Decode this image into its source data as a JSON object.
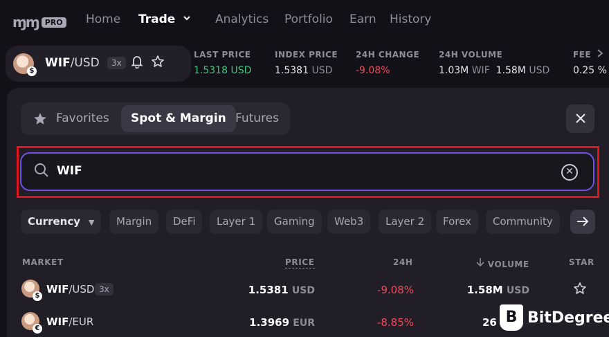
{
  "brand": {
    "mark": "ɱɱ",
    "pro_label": "PRO"
  },
  "nav": {
    "home": "Home",
    "trade": "Trade",
    "analytics": "Analytics",
    "portfolio": "Portfolio",
    "earn": "Earn",
    "history": "History"
  },
  "pair": {
    "base": "WIF",
    "quote": "/USD",
    "leverage": "3x",
    "badge": "$"
  },
  "stats": [
    {
      "label": "LAST PRICE",
      "value": "1.5318",
      "unit": "USD"
    },
    {
      "label": "INDEX PRICE",
      "value": "1.5381",
      "unit": "USD"
    },
    {
      "label": "24H CHANGE",
      "value": "-9.08",
      "unit": "%"
    },
    {
      "label": "24H VOLUME",
      "value": "1.03M",
      "unit": "WIF",
      "value2": "1.58M",
      "unit2": "USD"
    },
    {
      "label": "FEE",
      "value": "0.25",
      "unit": "%"
    }
  ],
  "tabs": {
    "favorites": "Favorites",
    "spot_margin": "Spot & Margin",
    "futures": "Futures"
  },
  "search": {
    "value": "WIF"
  },
  "filters": [
    "Currency",
    "Margin",
    "DeFi",
    "Layer 1",
    "Gaming",
    "Web3",
    "Layer 2",
    "Forex",
    "Community"
  ],
  "table": {
    "headers": {
      "market": "MARKET",
      "price": "PRICE",
      "change": "24H",
      "volume": "VOLUME",
      "star": "STAR"
    },
    "rows": [
      {
        "base": "WIF",
        "quote": "/USD",
        "leverage": "3x",
        "badge": "$",
        "price": "1.5381",
        "price_unit": "USD",
        "change": "-9.08",
        "change_unit": "%",
        "volume": "1.58M",
        "volume_unit": "USD"
      },
      {
        "base": "WIF",
        "quote": "/EUR",
        "leverage": "",
        "badge": "€",
        "price": "1.3969",
        "price_unit": "EUR",
        "change": "-8.85",
        "change_unit": "%",
        "volume": "26",
        "volume_unit": ""
      }
    ]
  },
  "watermark": {
    "text": "BitDegree",
    "mark": "B"
  },
  "colors": {
    "accent": "#7350e6",
    "positive": "#3fc57d",
    "negative": "#f04a5a",
    "highlight": "#e0141e"
  }
}
